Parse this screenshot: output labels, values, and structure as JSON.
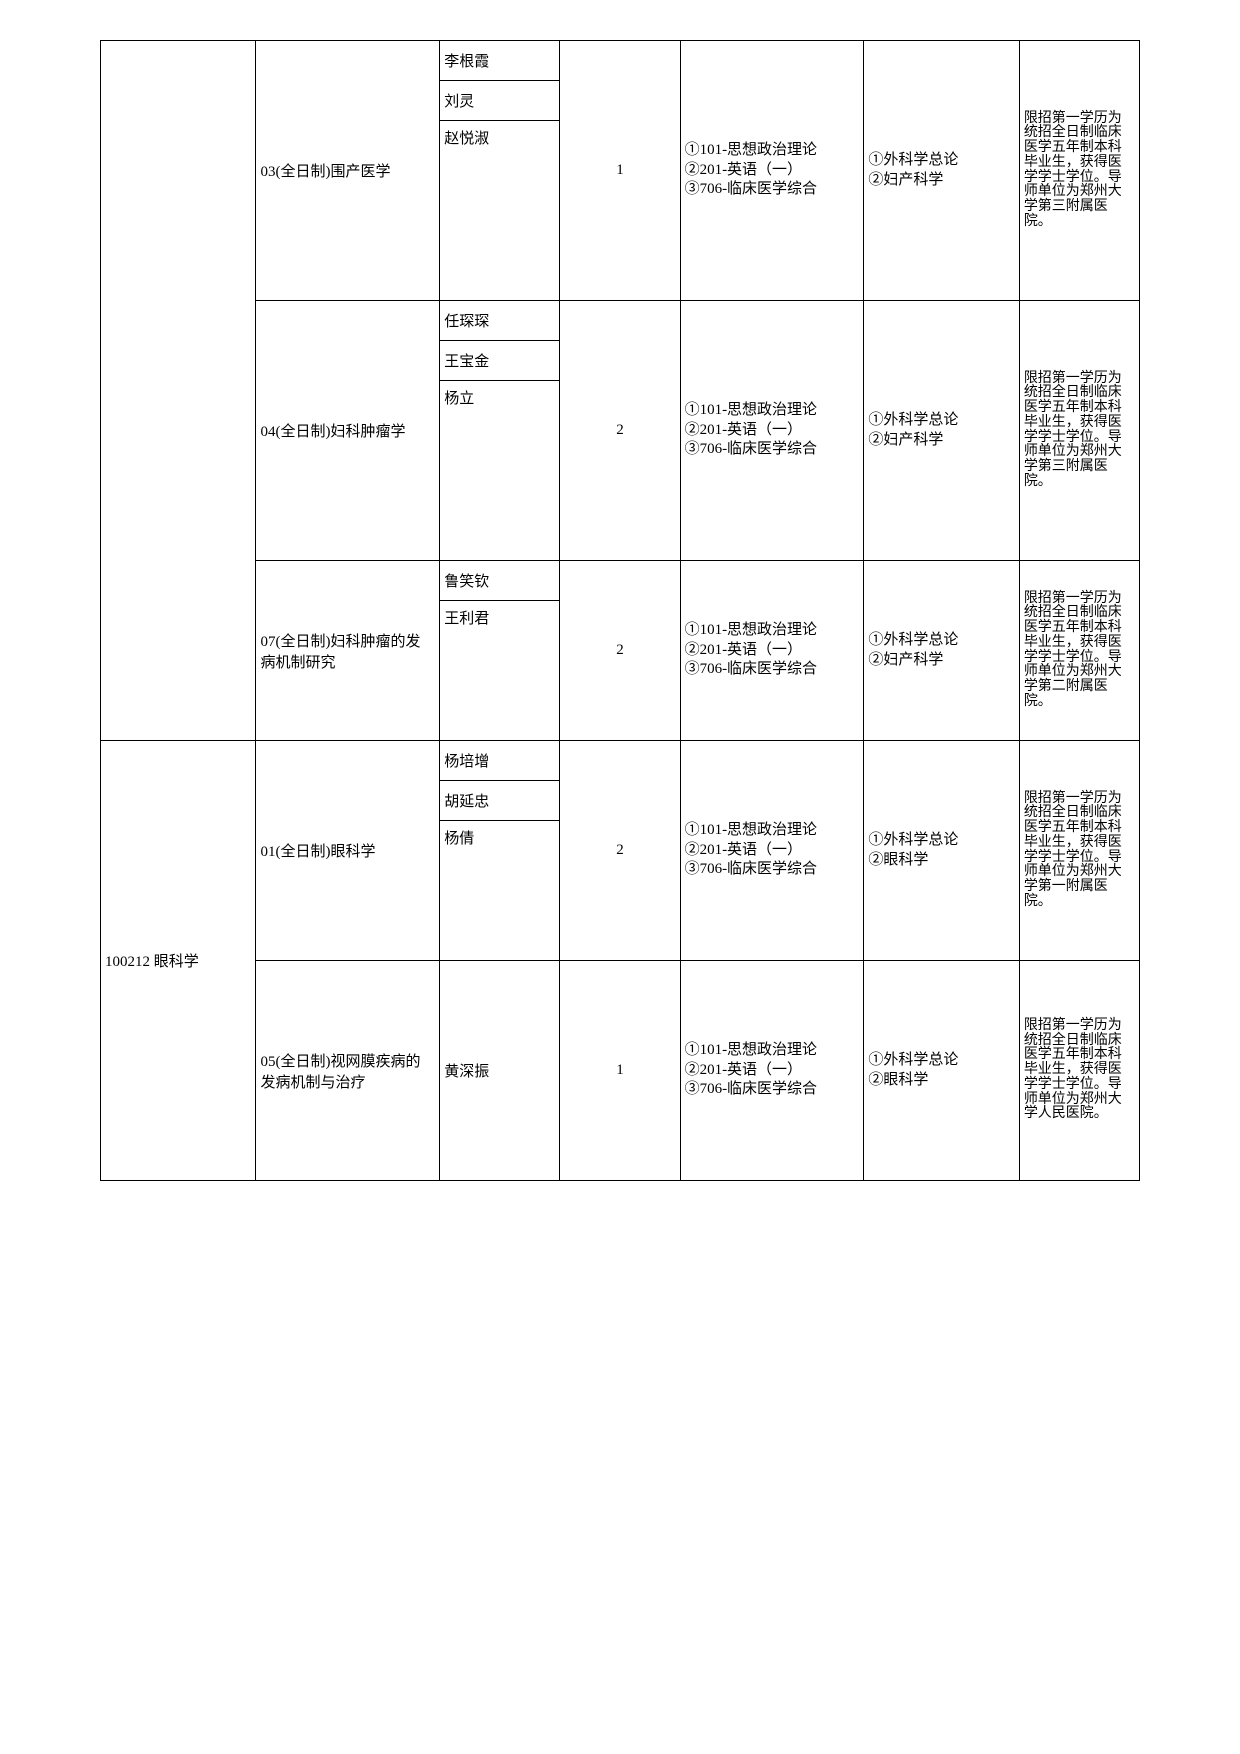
{
  "codes": {
    "ophthalmology": "100212  眼科学"
  },
  "directions": {
    "d03": "03(全日制)围产医学",
    "d04": "04(全日制)妇科肿瘤学",
    "d07": "07(全日制)妇科肿瘤的发病机制研究",
    "d01": "01(全日制)眼科学",
    "d05": "05(全日制)视网膜疾病的发病机制与治疗"
  },
  "teachers": {
    "t1": "李根霞",
    "t2": "刘灵",
    "t3": "赵悦淑",
    "t4": "任琛琛",
    "t5": "王宝金",
    "t6": "杨立",
    "t7": "鲁笑钦",
    "t8": "王利君",
    "t9": "杨培增",
    "t10": "胡延忠",
    "t11": "杨倩",
    "t12": "黄深振"
  },
  "nums": {
    "n1": "1",
    "n2": "2",
    "n3": "2",
    "n4": "2",
    "n5": "1"
  },
  "exams": {
    "standard": "①101-思想政治理论\n②201-英语（一）\n③706-临床医学综合"
  },
  "retest": {
    "gyn": "①外科学总论\n②妇产科学",
    "eye": "①外科学总论\n②眼科学"
  },
  "notes": {
    "third": "限招第一学历为统招全日制临床医学五年制本科毕业生，获得医学学士学位。导师单位为郑州大学第三附属医院。",
    "second": "限招第一学历为统招全日制临床医学五年制本科毕业生，获得医学学士学位。导师单位为郑州大学第二附属医院。",
    "first": "限招第一学历为统招全日制临床医学五年制本科毕业生，获得医学学士学位。导师单位为郑州大学第一附属医院。",
    "renmin": "限招第一学历为统招全日制临床医学五年制本科毕业生，获得医学学士学位。导师单位为郑州大学人民医院。"
  }
}
